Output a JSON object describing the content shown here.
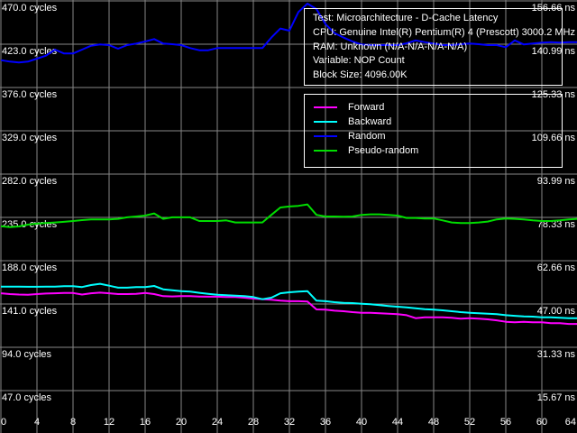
{
  "chart_data": {
    "type": "line",
    "title": "Microarchitecture - D-Cache Latency",
    "grid_color": "#878787",
    "background_color": "#000000",
    "text_color": "#ffffff",
    "x_ticks": [
      0,
      4,
      8,
      12,
      16,
      20,
      24,
      28,
      32,
      36,
      40,
      44,
      48,
      52,
      56,
      60,
      64
    ],
    "x_start": 0,
    "x_step": 1,
    "left_axis": {
      "unit": "cycles",
      "tick_values": [
        470.0,
        423.0,
        376.0,
        329.0,
        282.0,
        235.0,
        188.0,
        141.0,
        94.0,
        47.0
      ],
      "ticks": [
        "470.0 cycles",
        "423.0 cycles",
        "376.0 cycles",
        "329.0 cycles",
        "282.0 cycles",
        "235.0 cycles",
        "188.0 cycles",
        "141.0 cycles",
        "94.0 cycles",
        "47.0 cycles"
      ]
    },
    "right_axis": {
      "unit": "ns",
      "tick_values": [
        156.66,
        140.99,
        125.33,
        109.66,
        93.99,
        78.33,
        62.66,
        47.0,
        31.33,
        15.67
      ],
      "ticks": [
        "156.66 ns",
        "140.99 ns",
        "125.33 ns",
        "109.66 ns",
        "93.99 ns",
        "78.33 ns",
        "62.66 ns",
        "47.00 ns",
        "31.33 ns",
        "15.67 ns"
      ]
    },
    "series": [
      {
        "name": "Forward",
        "color": "#ff00ff",
        "unit": "cycles",
        "values": [
          152.7,
          151.8,
          151.3,
          151.1,
          151.8,
          152.4,
          152.7,
          153.0,
          152.9,
          151.3,
          152.7,
          153.3,
          152.7,
          151.8,
          151.8,
          152.1,
          153.0,
          151.8,
          149.5,
          149.2,
          149.5,
          149.5,
          149.1,
          148.9,
          148.9,
          148.6,
          148.6,
          147.9,
          146.9,
          146.3,
          145.6,
          144.6,
          144.0,
          144.0,
          143.7,
          135.1,
          134.8,
          133.8,
          133.2,
          132.2,
          131.5,
          131.5,
          130.9,
          130.5,
          129.9,
          128.9,
          125.6,
          126.6,
          126.6,
          126.6,
          126.0,
          125.0,
          125.6,
          125.0,
          124.4,
          123.3,
          121.7,
          121.1,
          121.7,
          121.1,
          121.1,
          120.1,
          120.1,
          119.4,
          119.4
        ]
      },
      {
        "name": "Backward",
        "color": "#00ffff",
        "unit": "cycles",
        "values": [
          159.9,
          159.9,
          159.9,
          159.7,
          159.7,
          159.9,
          159.9,
          160.3,
          160.3,
          159.4,
          161.6,
          162.9,
          160.9,
          158.7,
          158.7,
          159.4,
          159.4,
          160.6,
          157.0,
          156.0,
          155.0,
          154.4,
          153.1,
          152.1,
          151.1,
          150.5,
          150.1,
          149.5,
          148.5,
          146.2,
          147.9,
          152.7,
          153.7,
          154.4,
          155.0,
          144.6,
          144.0,
          143.0,
          142.3,
          142.0,
          141.3,
          140.7,
          139.7,
          138.8,
          138.1,
          137.4,
          136.4,
          135.4,
          134.8,
          134.1,
          133.2,
          132.2,
          131.5,
          130.9,
          130.5,
          129.9,
          128.9,
          128.2,
          127.6,
          127.3,
          126.6,
          126.6,
          126.0,
          125.6,
          125.6
        ]
      },
      {
        "name": "Random",
        "color": "#0000ff",
        "unit": "cycles",
        "values": [
          405.7,
          404.1,
          403.1,
          404.1,
          407.3,
          410.6,
          417.1,
          412.9,
          412.9,
          417.1,
          421.3,
          422.7,
          422.0,
          418.1,
          422.0,
          423.7,
          425.9,
          428.6,
          423.7,
          423.0,
          422.0,
          418.8,
          416.4,
          416.4,
          418.8,
          418.8,
          418.8,
          418.8,
          418.8,
          418.8,
          430.2,
          440.0,
          437.7,
          458.0,
          467.1,
          461.2,
          444.8,
          435.1,
          430.2,
          425.9,
          422.7,
          422.0,
          422.0,
          422.0,
          422.0,
          424.0,
          427.1,
          425.3,
          423.7,
          422.0,
          422.0,
          423.0,
          423.7,
          423.0,
          422.0,
          422.0,
          419.8,
          427.1,
          422.7,
          423.7,
          424.7,
          425.3,
          424.7,
          425.3,
          425.3
        ]
      },
      {
        "name": "Pseudo-random",
        "color": "#00dd00",
        "unit": "cycles",
        "values": [
          225.5,
          224.5,
          225.2,
          227.2,
          228.2,
          228.9,
          229.5,
          230.2,
          231.1,
          232.1,
          232.8,
          232.8,
          232.8,
          233.4,
          235.1,
          236.0,
          237.0,
          239.3,
          233.4,
          235.1,
          235.1,
          235.1,
          231.1,
          231.1,
          231.1,
          231.8,
          229.5,
          229.5,
          229.5,
          229.5,
          237.7,
          245.8,
          246.8,
          247.5,
          249.1,
          237.7,
          236.0,
          236.0,
          235.7,
          236.0,
          237.7,
          238.3,
          238.3,
          237.7,
          237.0,
          234.4,
          234.4,
          233.8,
          233.8,
          231.8,
          229.5,
          228.9,
          228.9,
          229.5,
          230.5,
          232.8,
          233.8,
          233.4,
          232.8,
          231.8,
          231.1,
          231.1,
          231.8,
          232.8,
          233.4
        ]
      }
    ],
    "legend_position": "top-right box"
  },
  "info_box": {
    "lines": [
      "Test: Microarchitecture - D-Cache Latency",
      "CPU: Genuine Intel(R) Pentium(R) 4 (Prescott) 3000.2 MHz",
      "RAM: Unknown (N/A-N/A-N/A-N/A)",
      "Variable: NOP Count",
      "Block Size: 4096.00K"
    ]
  },
  "legend": {
    "items": [
      {
        "label": "Forward"
      },
      {
        "label": "Backward"
      },
      {
        "label": "Random"
      },
      {
        "label": "Pseudo-random"
      }
    ]
  }
}
